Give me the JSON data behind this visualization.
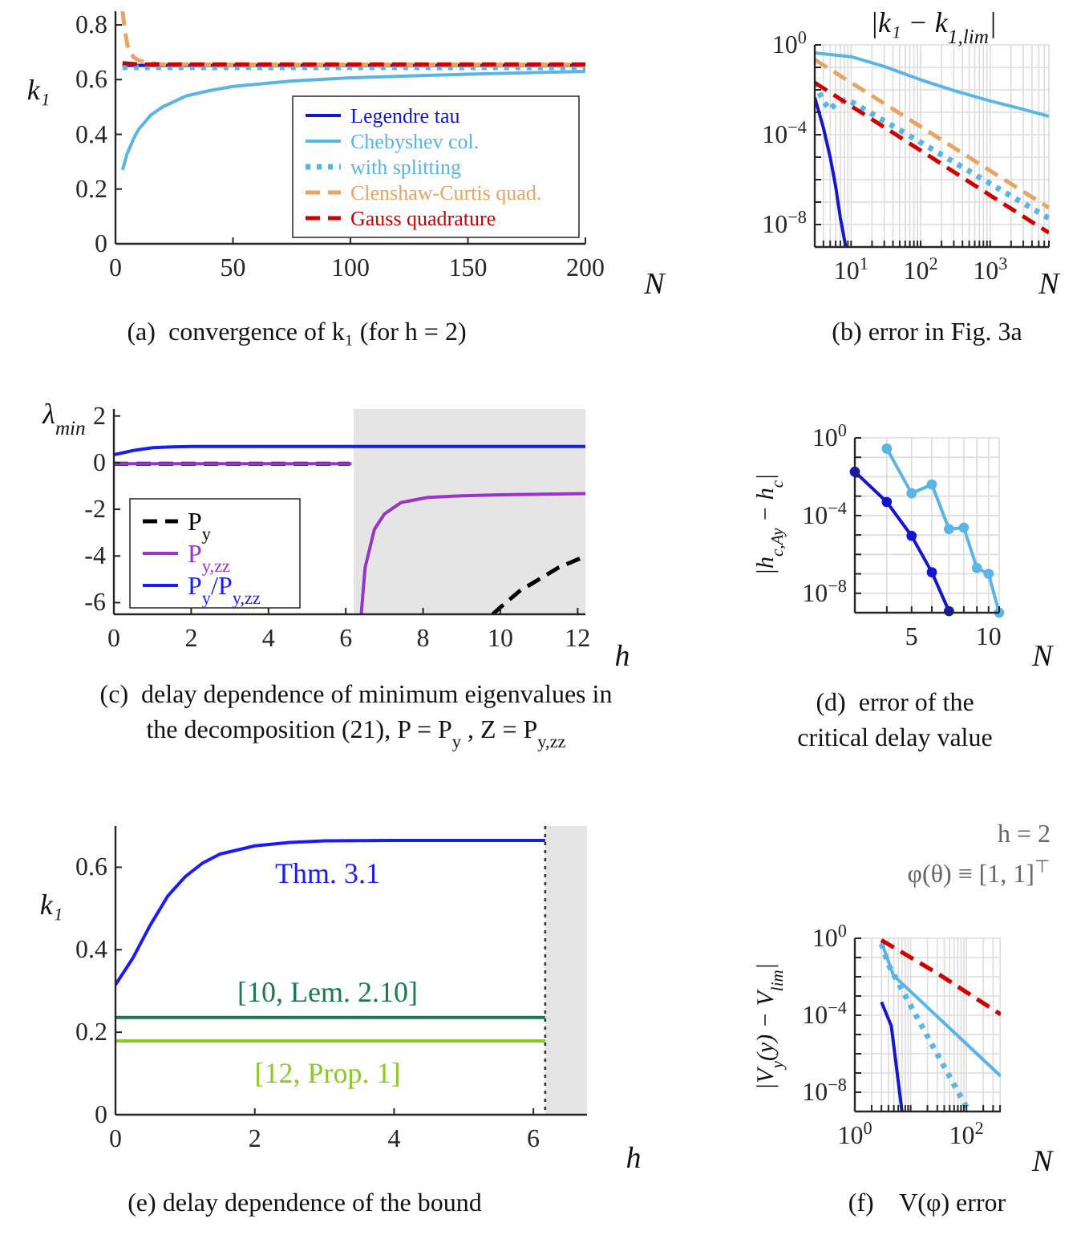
{
  "chart_data": [
    {
      "type": "line",
      "title": "(a)  convergence of k₁ (for h = 2)",
      "xlabel": "N",
      "ylabel": "k₁",
      "xlim": [
        0,
        200
      ],
      "ylim": [
        0,
        0.85
      ],
      "xticks": [
        0,
        50,
        100,
        150,
        200
      ],
      "yticks": [
        0,
        0.2,
        0.4,
        0.6,
        0.8
      ],
      "legend": "bottom right",
      "series": [
        {
          "name": "Legendre tau",
          "color": "#1515d0",
          "x": [
            3,
            10,
            50,
            100,
            150,
            200
          ],
          "values": [
            0.652,
            0.652,
            0.652,
            0.652,
            0.652,
            0.652
          ]
        },
        {
          "name": "Chebyshev col.",
          "color": "#5ab4e6",
          "x": [
            3,
            5,
            8,
            10,
            15,
            20,
            30,
            40,
            50,
            75,
            100,
            150,
            200
          ],
          "values": [
            0.27,
            0.33,
            0.39,
            0.42,
            0.47,
            0.5,
            0.54,
            0.56,
            0.575,
            0.595,
            0.607,
            0.62,
            0.63
          ]
        },
        {
          "name": "with splitting",
          "color": "#5ab4e6",
          "line_style": "dotted",
          "x": [
            3,
            50,
            100,
            150,
            200
          ],
          "values": [
            0.645,
            0.645,
            0.645,
            0.645,
            0.645
          ]
        },
        {
          "name": "Clenshaw-Curtis quad.",
          "color": "#e8a462",
          "line_style": "dashed",
          "x": [
            3,
            4,
            5,
            6,
            8,
            10,
            15,
            20,
            50,
            100,
            200
          ],
          "values": [
            0.85,
            0.78,
            0.73,
            0.7,
            0.68,
            0.67,
            0.66,
            0.656,
            0.655,
            0.655,
            0.655
          ]
        },
        {
          "name": "Gauss quadrature",
          "color": "#cc0000",
          "line_style": "dashed",
          "x": [
            3,
            10,
            50,
            100,
            150,
            200
          ],
          "values": [
            0.66,
            0.656,
            0.656,
            0.656,
            0.656,
            0.656
          ]
        }
      ]
    },
    {
      "type": "line",
      "title": "(b) error in Fig. 3a",
      "xlabel": "N",
      "ylabel": "|k₁ − k$_{1,lim}$|",
      "log": "xy",
      "grid": true,
      "xlim": [
        3,
        7000
      ],
      "ylim": [
        1e-09,
        1
      ],
      "xticks": [
        {
          "value": 3,
          "label": null
        },
        {
          "value": 4,
          "label": null
        },
        {
          "value": 5,
          "label": null
        },
        {
          "value": 6,
          "label": null
        },
        {
          "value": 7,
          "label": null
        },
        {
          "value": 8,
          "label": null
        },
        {
          "value": 9,
          "label": null
        },
        {
          "value": 10,
          "label": "10$^{1}$"
        },
        {
          "value": 20,
          "label": null
        },
        {
          "value": 30,
          "label": null
        },
        {
          "value": 40,
          "label": null
        },
        {
          "value": 50,
          "label": null
        },
        {
          "value": 60,
          "label": null
        },
        {
          "value": 70,
          "label": null
        },
        {
          "value": 80,
          "label": null
        },
        {
          "value": 90,
          "label": null
        },
        {
          "value": 100,
          "label": "10$^{2}$"
        },
        {
          "value": 200,
          "label": null
        },
        {
          "value": 300,
          "label": null
        },
        {
          "value": 400,
          "label": null
        },
        {
          "value": 500,
          "label": null
        },
        {
          "value": 600,
          "label": null
        },
        {
          "value": 700,
          "label": null
        },
        {
          "value": 800,
          "label": null
        },
        {
          "value": 900,
          "label": null
        },
        {
          "value": 1000,
          "label": "10$^{3}$"
        },
        {
          "value": 2000,
          "label": null
        },
        {
          "value": 3000,
          "label": null
        },
        {
          "value": 4000,
          "label": null
        },
        {
          "value": 5000,
          "label": null
        },
        {
          "value": 6000,
          "label": null
        },
        {
          "value": 7000,
          "label": null
        }
      ],
      "yticks": [
        {
          "value": 1,
          "label": "10$^{0}$"
        },
        {
          "value": 0.1,
          "label": null
        },
        {
          "value": 0.01,
          "label": null
        },
        {
          "value": 0.001,
          "label": null
        },
        {
          "value": 0.0001,
          "label": "10$^{−4}$"
        },
        {
          "value": 1e-05,
          "label": null
        },
        {
          "value": 1e-06,
          "label": null
        },
        {
          "value": 1e-07,
          "label": null
        },
        {
          "value": 1e-08,
          "label": "10$^{−8}$"
        },
        {
          "value": 1e-09,
          "label": null
        }
      ],
      "series": [
        {
          "color": "#5ab4e6",
          "x": [
            3,
            10,
            30,
            100,
            300,
            1000,
            3000,
            7000
          ],
          "values": [
            0.44,
            0.3,
            0.11,
            0.028,
            0.0093,
            0.0032,
            0.00135,
            0.00066
          ]
        },
        {
          "color": "#e8a462",
          "line_style": "dashed",
          "x": [
            3,
            10,
            100,
            1000,
            7000
          ],
          "values": [
            0.22,
            0.021,
            0.00023,
            2.5e-06,
            5.6e-08
          ]
        },
        {
          "color": "#5ab4e6",
          "line_style": "dotted",
          "x": [
            3,
            4,
            5,
            6,
            8,
            10,
            100,
            1000,
            7000
          ],
          "values": [
            0.021,
            0.003,
            0.0013,
            0.0025,
            0.0035,
            0.003,
            4.6e-05,
            6.6e-07,
            1.9e-08
          ]
        },
        {
          "color": "#cc0000",
          "line_style": "dashed",
          "x": [
            3,
            10,
            100,
            1000,
            7000
          ],
          "values": [
            0.021,
            0.0019,
            2e-05,
            2e-07,
            4.3e-09
          ]
        },
        {
          "color": "#1515d0",
          "x": [
            3,
            4,
            5,
            6,
            7,
            8.4
          ],
          "values": [
            0.0046,
            0.0002,
            1e-05,
            5e-07,
            2e-08,
            1e-09
          ]
        }
      ]
    },
    {
      "type": "line",
      "title": "(c)  delay dependence of minimum eigenvalues in the decomposition (21), P = P$_{y}$ , Z = P$_{y,zz}$",
      "xlabel": "h",
      "ylabel": "λ$_{min}$",
      "xlim": [
        0,
        12.2
      ],
      "ylim": [
        -6.5,
        2.3
      ],
      "xticks": [
        0,
        2,
        4,
        6,
        8,
        10,
        12
      ],
      "yticks": [
        -6,
        -4,
        -2,
        0,
        2
      ],
      "legend": "bottom left",
      "bands": [
        {
          "axis": "x",
          "from": 6.2,
          "to": 12.2,
          "color": "#e5e5e5"
        }
      ],
      "series": [
        {
          "name": "P$_{y}$",
          "color": "#000000",
          "line_style": "dashed",
          "x": [
            0,
            6.1,
            6.15,
            9.8,
            10,
            10.5,
            11,
            11.5,
            12,
            12.2
          ],
          "values": [
            -0.05,
            -0.05,
            null,
            -6.5,
            -6.2,
            -5.5,
            -5.0,
            -4.5,
            -4.15,
            -4.0
          ]
        },
        {
          "name": "P$_{y,zz}$",
          "color": "#9933cc",
          "x": [
            0,
            6.15,
            6.2,
            6.4,
            6.5,
            6.74,
            7,
            7.43,
            8.12,
            9,
            10,
            12.2
          ],
          "values": [
            -0.05,
            -0.05,
            null,
            -6.5,
            -4.5,
            -2.86,
            -2.2,
            -1.71,
            -1.49,
            -1.42,
            -1.38,
            -1.33
          ]
        },
        {
          "name": "P$_{y}$/P$_{y,zz}$",
          "color": "#1a1aff",
          "x": [
            0,
            0.5,
            1,
            1.5,
            2,
            12.2
          ],
          "values": [
            0.34,
            0.52,
            0.64,
            0.68,
            0.69,
            0.69
          ]
        }
      ]
    },
    {
      "type": "line",
      "title": "(d)  error of the critical delay value",
      "xlabel": "N",
      "ylabel": "|h$_{c,Ay}$ − h$_{c}$|",
      "log": "xy",
      "grid": true,
      "marker": "circle",
      "xlim": [
        3,
        11
      ],
      "ylim": [
        1e-09,
        1
      ],
      "xticks": [
        {
          "value": 3,
          "label": null
        },
        {
          "value": 4,
          "label": null
        },
        {
          "value": 5,
          "label": "5"
        },
        {
          "value": 6,
          "label": null
        },
        {
          "value": 7,
          "label": null
        },
        {
          "value": 8,
          "label": null
        },
        {
          "value": 9,
          "label": null
        },
        {
          "value": 10,
          "label": "10"
        },
        {
          "value": 11,
          "label": null
        }
      ],
      "yticks": [
        {
          "value": 1,
          "label": "10$^{0}$"
        },
        {
          "value": 0.1,
          "label": null
        },
        {
          "value": 0.01,
          "label": null
        },
        {
          "value": 0.001,
          "label": null
        },
        {
          "value": 0.0001,
          "label": "10$^{−4}$"
        },
        {
          "value": 1e-05,
          "label": null
        },
        {
          "value": 1e-06,
          "label": null
        },
        {
          "value": 1e-07,
          "label": null
        },
        {
          "value": 1e-08,
          "label": "10$^{−8}$"
        },
        {
          "value": 1e-09,
          "label": null
        }
      ],
      "series": [
        {
          "color": "#5ab4e6",
          "x": [
            4,
            5,
            6,
            7,
            8,
            9,
            10,
            11
          ],
          "values": [
            0.28,
            0.0014,
            0.004,
            2e-05,
            2.4e-05,
            2e-07,
            1e-07,
            1e-09
          ]
        },
        {
          "color": "#1515d0",
          "x": [
            3,
            4,
            5,
            6,
            7
          ],
          "values": [
            0.018,
            0.0005,
            9e-06,
            1.2e-07,
            1.2e-09
          ]
        }
      ]
    },
    {
      "type": "line",
      "title": "(e) delay dependence of the bound",
      "xlabel": "h",
      "ylabel": "k₁",
      "xlim": [
        0,
        6.77
      ],
      "ylim": [
        0,
        0.7
      ],
      "xticks": [
        0,
        2,
        4,
        6
      ],
      "yticks": [
        0,
        0.2,
        0.4,
        0.6
      ],
      "bands": [
        {
          "axis": "x",
          "from": 6.17,
          "to": 6.77,
          "color": "#e5e5e5"
        }
      ],
      "ref_lines": [
        {
          "axis": "x",
          "value": 6.17,
          "color": "#333333",
          "line_style": "dotted"
        }
      ],
      "series": [
        {
          "name": "Thm. 3.1",
          "color": "#1a1aff",
          "x": [
            0,
            0.25,
            0.5,
            0.75,
            1,
            1.25,
            1.5,
            2,
            2.5,
            3,
            4,
            6.17
          ],
          "values": [
            0.315,
            0.38,
            0.46,
            0.53,
            0.577,
            0.61,
            0.632,
            0.652,
            0.66,
            0.664,
            0.665,
            0.665
          ]
        },
        {
          "name": "[10, Lem. 2.10]",
          "color": "#1a7a50",
          "x": [
            0,
            6.17
          ],
          "values": [
            0.236,
            0.236
          ]
        },
        {
          "name": "[12, Prop. 1]",
          "color": "#88cc22",
          "x": [
            0,
            6.17
          ],
          "values": [
            0.179,
            0.179
          ]
        }
      ]
    },
    {
      "type": "line",
      "title": "(f)    V(φ) error",
      "xlabel": "N",
      "ylabel": "|V$_{y}$(y) − V$_{lim}$|",
      "log": "xy",
      "grid": true,
      "xlim": [
        1,
        412
      ],
      "ylim": [
        1e-09,
        1
      ],
      "annotations": [
        "h = 2",
        "φ(θ) ≡ [1, 1]$^{⊤}$"
      ],
      "xticks": [
        {
          "value": 1,
          "label": "10$^{0}$"
        },
        {
          "value": 2,
          "label": null
        },
        {
          "value": 3,
          "label": null
        },
        {
          "value": 4,
          "label": null
        },
        {
          "value": 5,
          "label": null
        },
        {
          "value": 6,
          "label": null
        },
        {
          "value": 7,
          "label": null
        },
        {
          "value": 8,
          "label": null
        },
        {
          "value": 9,
          "label": null
        },
        {
          "value": 10,
          "label": null
        },
        {
          "value": 20,
          "label": null
        },
        {
          "value": 30,
          "label": null
        },
        {
          "value": 40,
          "label": null
        },
        {
          "value": 50,
          "label": null
        },
        {
          "value": 60,
          "label": null
        },
        {
          "value": 70,
          "label": null
        },
        {
          "value": 80,
          "label": null
        },
        {
          "value": 90,
          "label": null
        },
        {
          "value": 100,
          "label": "10$^{2}$"
        },
        {
          "value": 200,
          "label": null
        },
        {
          "value": 300,
          "label": null
        },
        {
          "value": 400,
          "label": null
        }
      ],
      "yticks": [
        {
          "value": 1,
          "label": "10$^{0}$"
        },
        {
          "value": 0.1,
          "label": null
        },
        {
          "value": 0.01,
          "label": null
        },
        {
          "value": 0.001,
          "label": null
        },
        {
          "value": 0.0001,
          "label": "10$^{−4}$"
        },
        {
          "value": 1e-05,
          "label": null
        },
        {
          "value": 1e-06,
          "label": null
        },
        {
          "value": 1e-07,
          "label": null
        },
        {
          "value": 1e-08,
          "label": "10$^{−8}$"
        },
        {
          "value": 1e-09,
          "label": null
        }
      ],
      "series": [
        {
          "color": "#1515d0",
          "x": [
            3,
            4.5,
            7
          ],
          "values": [
            0.00049,
            2.8e-05,
            1e-09
          ]
        },
        {
          "color": "#5ab4e6",
          "x": [
            3,
            4.9,
            40,
            412
          ],
          "values": [
            0.63,
            0.012,
            3.9e-05,
            6.8e-08
          ]
        },
        {
          "color": "#5ab4e6",
          "line_style": "dotted",
          "x": [
            3,
            4,
            20,
            105
          ],
          "values": [
            0.52,
            0.042,
            8e-06,
            1.3e-09
          ]
        },
        {
          "color": "#e8a462",
          "line_style": "dashed",
          "x": [
            3,
            30,
            412
          ],
          "values": [
            0.83,
            0.016,
            0.000115
          ]
        },
        {
          "color": "#cc0000",
          "line_style": "dashed",
          "x": [
            3,
            30,
            412
          ],
          "values": [
            0.8,
            0.015,
            0.00011
          ]
        }
      ]
    }
  ]
}
